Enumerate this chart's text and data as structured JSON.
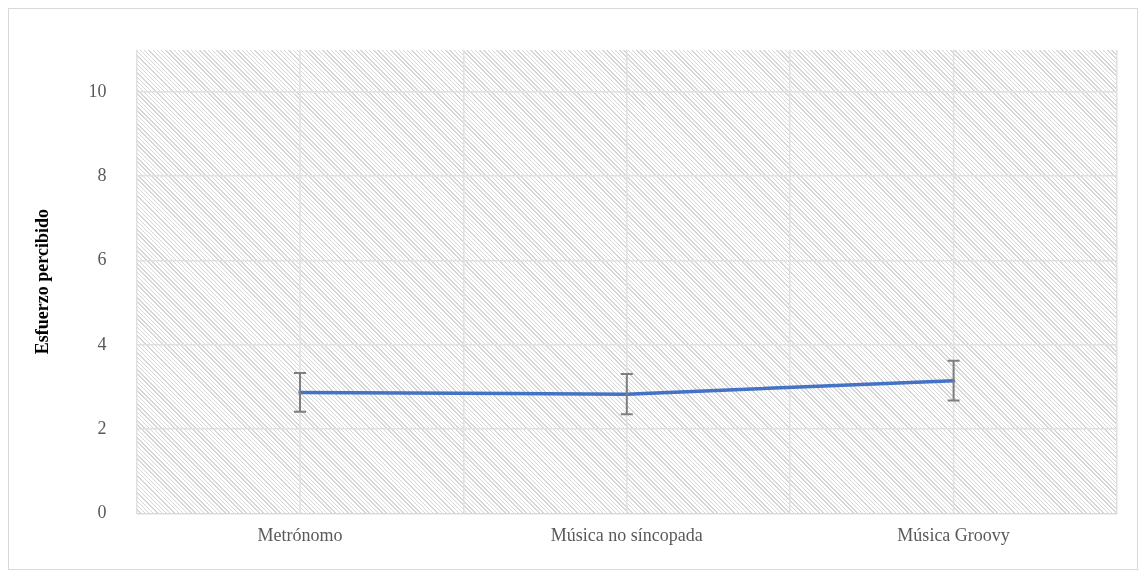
{
  "chart_data": {
    "type": "line",
    "ylabel": "Esfuerzo percibido",
    "categories": [
      "Metrónomo",
      "Música no síncopada",
      "Música Groovy"
    ],
    "series": [
      {
        "color": "#4472c4",
        "values": [
          2.87,
          2.83,
          3.15
        ],
        "errors": [
          0.46,
          0.48,
          0.47
        ]
      }
    ],
    "ylim": [
      0,
      11
    ],
    "yticks": [
      0,
      2,
      4,
      6,
      8,
      10
    ],
    "grid": true,
    "legend": false,
    "marker": "none",
    "line_style": "solid"
  }
}
